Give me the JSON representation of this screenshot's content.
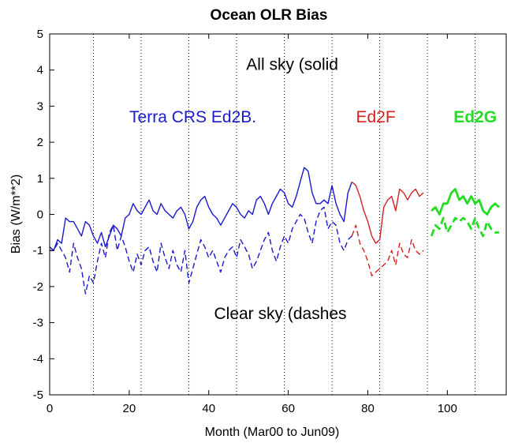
{
  "chart_data": {
    "type": "line",
    "title": "Ocean OLR Bias",
    "xlabel": "Month (Mar00 to Jun09)",
    "ylabel": "Bias (W/m**2)",
    "xlim": [
      0,
      115
    ],
    "ylim": [
      -5,
      5
    ],
    "xticks": [
      0,
      20,
      40,
      60,
      80,
      100
    ],
    "yticks": [
      -5,
      -4,
      -3,
      -2,
      -1,
      0,
      1,
      2,
      3,
      4,
      5
    ],
    "vlines": [
      11,
      23,
      35,
      47,
      59,
      71,
      83,
      95,
      107
    ],
    "grid": false,
    "annotations": [
      {
        "text": "All sky (solid",
        "x": 61,
        "y": 4.0,
        "color": "#000000",
        "weight": "normal"
      },
      {
        "text": "Clear sky (dashes",
        "x": 58,
        "y": -2.9,
        "color": "#000000",
        "weight": "normal"
      },
      {
        "text": "Terra CRS Ed2B.",
        "x": 36,
        "y": 2.55,
        "color": "#1a1acc",
        "weight": "normal"
      },
      {
        "text": "Ed2F",
        "x": 82,
        "y": 2.55,
        "color": "#d42020",
        "weight": "normal"
      },
      {
        "text": "Ed2G",
        "x": 107,
        "y": 2.55,
        "color": "#22dd22",
        "weight": "bold"
      }
    ],
    "series": [
      {
        "name": "Terra CRS Ed2B",
        "style": "solid",
        "color": "#1a1acc",
        "width": 1.4,
        "x": [
          0,
          1,
          2,
          3,
          4,
          5,
          6,
          7,
          8,
          9,
          10,
          11,
          12,
          13,
          14,
          15,
          16,
          17,
          18,
          19,
          20,
          21,
          22,
          23,
          24,
          25,
          26,
          27,
          28,
          29,
          30,
          31,
          32,
          33,
          34,
          35,
          36,
          37,
          38,
          39,
          40,
          41,
          42,
          43,
          44,
          45,
          46,
          47,
          48,
          49,
          50,
          51,
          52,
          53,
          54,
          55,
          56,
          57,
          58,
          59,
          60,
          61,
          62,
          63,
          64,
          65,
          66,
          67,
          68,
          69,
          70,
          71,
          72,
          73,
          74,
          75,
          76
        ],
        "y": [
          -1.0,
          -1.0,
          -0.7,
          -0.8,
          -0.1,
          -0.2,
          -0.2,
          -0.4,
          -0.6,
          -0.2,
          -0.3,
          -0.6,
          -0.8,
          -0.5,
          -0.9,
          -0.6,
          -0.3,
          -0.4,
          -0.6,
          -0.1,
          0.0,
          0.3,
          0.1,
          0.0,
          0.2,
          0.4,
          0.1,
          0.0,
          0.3,
          0.1,
          0.0,
          -0.1,
          0.1,
          0.2,
          0.0,
          -0.4,
          -0.2,
          0.2,
          0.4,
          0.5,
          0.2,
          0.0,
          -0.1,
          -0.3,
          -0.1,
          0.1,
          0.3,
          0.2,
          0.0,
          -0.1,
          0.1,
          0.0,
          0.4,
          0.5,
          0.3,
          0.0,
          0.3,
          0.5,
          0.7,
          0.6,
          0.3,
          0.2,
          0.5,
          0.9,
          1.3,
          1.2,
          0.6,
          0.3,
          0.3,
          0.4,
          0.3,
          0.8,
          0.3,
          0.0,
          -0.2,
          0.6,
          0.9
        ]
      },
      {
        "name": "Terra CRS Ed2B clear",
        "style": "dashed",
        "color": "#1a1acc",
        "width": 1.4,
        "x": [
          0,
          1,
          2,
          3,
          4,
          5,
          6,
          7,
          8,
          9,
          10,
          11,
          12,
          13,
          14,
          15,
          16,
          17,
          18,
          19,
          20,
          21,
          22,
          23,
          24,
          25,
          26,
          27,
          28,
          29,
          30,
          31,
          32,
          33,
          34,
          35,
          36,
          37,
          38,
          39,
          40,
          41,
          42,
          43,
          44,
          45,
          46,
          47,
          48,
          49,
          50,
          51,
          52,
          53,
          54,
          55,
          56,
          57,
          58,
          59,
          60,
          61,
          62,
          63,
          64,
          65,
          66,
          67,
          68,
          69,
          70,
          71,
          72,
          73,
          74,
          75,
          76
        ],
        "y": [
          -0.9,
          -1.0,
          -0.8,
          -1.0,
          -1.2,
          -1.6,
          -0.8,
          -1.2,
          -1.5,
          -2.2,
          -1.7,
          -1.9,
          -1.3,
          -0.8,
          -1.2,
          -0.5,
          -0.3,
          -1.0,
          -0.6,
          -0.9,
          -1.3,
          -1.6,
          -1.1,
          -1.4,
          -1.0,
          -0.9,
          -1.3,
          -1.6,
          -0.8,
          -1.2,
          -1.5,
          -1.0,
          -1.4,
          -1.6,
          -1.0,
          -1.9,
          -1.5,
          -1.1,
          -0.7,
          -0.9,
          -1.2,
          -1.0,
          -1.3,
          -1.6,
          -1.2,
          -1.0,
          -0.9,
          -1.2,
          -0.7,
          -0.9,
          -1.1,
          -1.5,
          -1.3,
          -1.0,
          -0.7,
          -0.5,
          -1.0,
          -1.3,
          -0.9,
          -0.6,
          -0.8,
          -0.4,
          -0.2,
          0.0,
          -0.1,
          -0.5,
          -0.8,
          -0.2,
          0.1,
          0.2,
          -0.4,
          -0.2,
          -0.3,
          -0.8,
          -1.0,
          -0.7,
          -0.6
        ]
      },
      {
        "name": "Ed2F",
        "style": "solid",
        "color": "#d42020",
        "width": 1.4,
        "x": [
          76,
          77,
          78,
          79,
          80,
          81,
          82,
          83,
          84,
          85,
          86,
          87,
          88,
          89,
          90,
          91,
          92,
          93,
          94
        ],
        "y": [
          0.9,
          0.8,
          0.5,
          0.1,
          -0.2,
          -0.6,
          -0.8,
          -0.7,
          0.2,
          0.4,
          0.5,
          0.1,
          0.7,
          0.6,
          0.4,
          0.6,
          0.7,
          0.5,
          0.6
        ]
      },
      {
        "name": "Ed2F clear",
        "style": "dashed",
        "color": "#d42020",
        "width": 1.4,
        "x": [
          76,
          77,
          78,
          79,
          80,
          81,
          82,
          83,
          84,
          85,
          86,
          87,
          88,
          89,
          90,
          91,
          92,
          93,
          94
        ],
        "y": [
          -0.6,
          -0.3,
          -0.8,
          -1.0,
          -1.3,
          -1.7,
          -1.6,
          -1.5,
          -1.4,
          -1.3,
          -1.0,
          -1.4,
          -0.8,
          -1.1,
          -1.2,
          -0.7,
          -1.0,
          -1.1,
          -1.0
        ]
      },
      {
        "name": "Ed2G",
        "style": "solid",
        "color": "#22dd22",
        "width": 2.8,
        "x": [
          96,
          97,
          98,
          99,
          100,
          101,
          102,
          103,
          104,
          105,
          106,
          107,
          108,
          109,
          110,
          111,
          112,
          113
        ],
        "y": [
          0.1,
          0.2,
          0.0,
          0.3,
          0.3,
          0.6,
          0.7,
          0.4,
          0.5,
          0.3,
          0.5,
          0.3,
          0.4,
          0.1,
          0.0,
          0.2,
          0.3,
          0.2
        ]
      },
      {
        "name": "Ed2G clear",
        "style": "dashed",
        "color": "#22dd22",
        "width": 2.8,
        "x": [
          96,
          97,
          98,
          99,
          100,
          101,
          102,
          103,
          104,
          105,
          106,
          107,
          108,
          109,
          110,
          111,
          112,
          113
        ],
        "y": [
          -0.6,
          -0.3,
          -0.4,
          -0.1,
          -0.5,
          -0.3,
          -0.1,
          -0.2,
          -0.1,
          -0.2,
          -0.4,
          -0.1,
          -0.4,
          -0.6,
          -0.2,
          -0.4,
          -0.5,
          -0.5
        ]
      }
    ]
  }
}
